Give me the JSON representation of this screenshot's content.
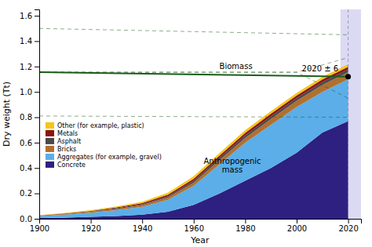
{
  "chart_data": {
    "type": "area",
    "x": [
      1900,
      1910,
      1920,
      1930,
      1940,
      1950,
      1960,
      1970,
      1980,
      1990,
      2000,
      2010,
      2020
    ],
    "series": [
      {
        "name": "Concrete",
        "color": "#2d2080",
        "values": [
          0.006,
          0.01,
          0.015,
          0.022,
          0.032,
          0.055,
          0.11,
          0.2,
          0.3,
          0.4,
          0.52,
          0.68,
          0.77
        ]
      },
      {
        "name": "Aggregates (for example, gravel)",
        "color": "#5baee8",
        "values": [
          0.02,
          0.032,
          0.048,
          0.068,
          0.095,
          0.15,
          0.26,
          0.43,
          0.6,
          0.74,
          0.88,
          1.0,
          1.1
        ]
      },
      {
        "name": "Bricks",
        "color": "#b07030",
        "values": [
          0.023,
          0.037,
          0.055,
          0.078,
          0.108,
          0.168,
          0.285,
          0.462,
          0.637,
          0.787,
          0.93,
          1.055,
          1.155
        ]
      },
      {
        "name": "Asphalt",
        "color": "#4a4a4a",
        "values": [
          0.024,
          0.039,
          0.058,
          0.083,
          0.115,
          0.178,
          0.3,
          0.48,
          0.657,
          0.807,
          0.952,
          1.077,
          1.178
        ]
      },
      {
        "name": "Metals",
        "color": "#8b1515",
        "values": [
          0.026,
          0.042,
          0.062,
          0.09,
          0.124,
          0.19,
          0.315,
          0.498,
          0.677,
          0.828,
          0.972,
          1.098,
          1.198
        ]
      },
      {
        "name": "Other (for example, plastic)",
        "color": "#f5c518",
        "values": [
          0.028,
          0.046,
          0.068,
          0.098,
          0.134,
          0.205,
          0.335,
          0.518,
          0.698,
          0.848,
          0.992,
          1.118,
          1.218
        ]
      },
      {
        "type": "line",
        "x": [
          1900,
          2020
        ],
        "values": [
          1.155,
          1.12
        ],
        "color": "#1a5c1a",
        "line_style": "solid"
      },
      {
        "type": "line",
        "x": [
          1900,
          2020
        ],
        "values": [
          1.5,
          1.45
        ],
        "color": "#1a5c1a",
        "line_style": "dashed"
      },
      {
        "type": "line",
        "x": [
          1900,
          2020
        ],
        "values": [
          0.81,
          0.8
        ],
        "color": "#1a5c1a",
        "line_style": "dashed"
      },
      {
        "type": "line",
        "x": [
          1900,
          2000,
          2020
        ],
        "values": [
          1.155,
          1.155,
          1.27
        ],
        "color": "#1a5c1a",
        "line_style": "dashed"
      },
      {
        "type": "line",
        "x": [
          1900,
          2000,
          2020
        ],
        "values": [
          1.155,
          1.155,
          0.95
        ],
        "color": "#1a5c1a",
        "line_style": "dashed"
      },
      {
        "type": "scatter",
        "x": [
          2020
        ],
        "values": [
          1.12
        ],
        "color": "#000000",
        "marker": "circle"
      }
    ],
    "span": {
      "x": [
        2017,
        2025
      ],
      "color": "#c0bce8"
    },
    "vline": {
      "x": 2020,
      "color": "#8888bb"
    },
    "annotations": [
      {
        "text": "Biomass",
        "x": 1970,
        "y": 1.165
      },
      {
        "text": "2020 ± 6",
        "x": 2002,
        "y": 1.15
      },
      {
        "text": "Anthropogenic\nmass",
        "x": 1975,
        "y": 0.42
      }
    ],
    "xlabel": "Year",
    "ylabel": "Dry weight (Tt)",
    "xlim": [
      1900,
      2025
    ],
    "ylim": [
      0,
      1.65
    ],
    "xticks": [
      1900,
      1920,
      1940,
      1960,
      1980,
      2000,
      2020
    ],
    "yticks": [
      {
        "value": 0,
        "label": "0.0"
      },
      0.2,
      0.4,
      0.6,
      0.8,
      {
        "value": 1.0,
        "label": "1.0"
      },
      1.2,
      1.4,
      1.6
    ],
    "legend": "lower left"
  }
}
